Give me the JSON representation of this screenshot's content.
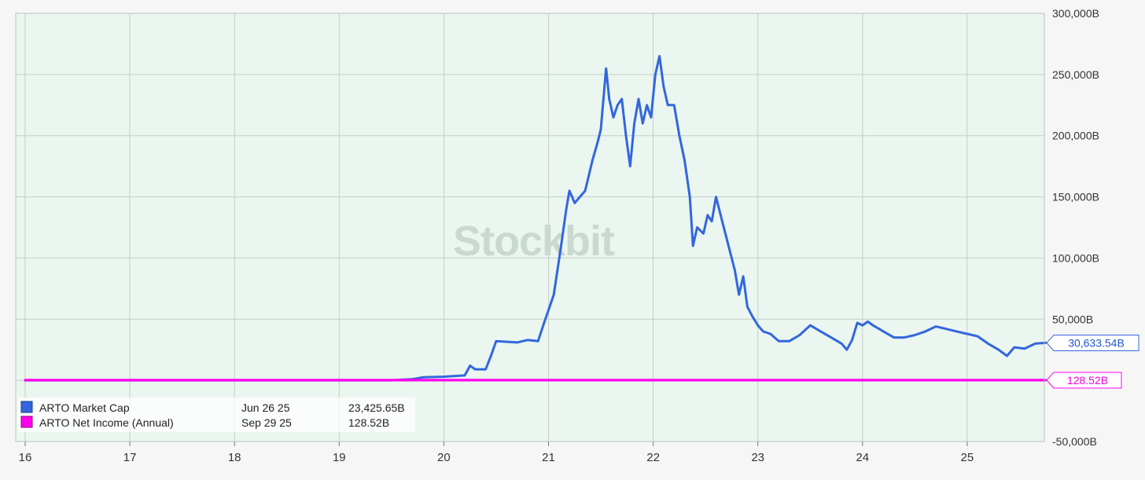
{
  "chart_data": {
    "type": "line",
    "watermark": "Stockbit",
    "x_ticks": [
      "16",
      "17",
      "18",
      "19",
      "20",
      "21",
      "22",
      "23",
      "24",
      "25"
    ],
    "x_range": [
      16.0,
      25.75
    ],
    "y_ticks": [
      "300,000B",
      "250,000B",
      "200,000B",
      "150,000B",
      "100,000B",
      "50,000B",
      "-50,000B"
    ],
    "ylim": [
      -50000,
      300000
    ],
    "grid": true,
    "legend_position": "bottom-left",
    "colors": {
      "market_cap": "#3366dd",
      "net_income": "#ff00ee",
      "plot_bg": "#eaf6ef"
    },
    "series": [
      {
        "name": "ARTO Market Cap",
        "date": "Jun 26 25",
        "value": "23,425.65B",
        "last_value_label": "30,633.54B",
        "color": "#3366dd",
        "points": [
          [
            16.0,
            0
          ],
          [
            18.0,
            0
          ],
          [
            19.5,
            0
          ],
          [
            19.7,
            1000
          ],
          [
            19.8,
            2500
          ],
          [
            20.0,
            3000
          ],
          [
            20.2,
            4000
          ],
          [
            20.25,
            12000
          ],
          [
            20.3,
            9000
          ],
          [
            20.4,
            9000
          ],
          [
            20.45,
            20000
          ],
          [
            20.5,
            32000
          ],
          [
            20.7,
            31000
          ],
          [
            20.8,
            33000
          ],
          [
            20.9,
            32000
          ],
          [
            20.95,
            45000
          ],
          [
            21.05,
            70000
          ],
          [
            21.12,
            110000
          ],
          [
            21.17,
            140000
          ],
          [
            21.2,
            155000
          ],
          [
            21.25,
            145000
          ],
          [
            21.3,
            150000
          ],
          [
            21.35,
            155000
          ],
          [
            21.42,
            180000
          ],
          [
            21.47,
            195000
          ],
          [
            21.5,
            205000
          ],
          [
            21.55,
            255000
          ],
          [
            21.58,
            230000
          ],
          [
            21.62,
            215000
          ],
          [
            21.66,
            225000
          ],
          [
            21.7,
            230000
          ],
          [
            21.74,
            200000
          ],
          [
            21.78,
            175000
          ],
          [
            21.82,
            210000
          ],
          [
            21.86,
            230000
          ],
          [
            21.9,
            210000
          ],
          [
            21.94,
            225000
          ],
          [
            21.98,
            215000
          ],
          [
            22.02,
            250000
          ],
          [
            22.06,
            265000
          ],
          [
            22.1,
            240000
          ],
          [
            22.14,
            225000
          ],
          [
            22.2,
            225000
          ],
          [
            22.25,
            200000
          ],
          [
            22.3,
            180000
          ],
          [
            22.35,
            150000
          ],
          [
            22.38,
            110000
          ],
          [
            22.42,
            125000
          ],
          [
            22.48,
            120000
          ],
          [
            22.52,
            135000
          ],
          [
            22.56,
            130000
          ],
          [
            22.6,
            150000
          ],
          [
            22.66,
            130000
          ],
          [
            22.72,
            110000
          ],
          [
            22.78,
            90000
          ],
          [
            22.82,
            70000
          ],
          [
            22.86,
            85000
          ],
          [
            22.9,
            60000
          ],
          [
            22.95,
            52000
          ],
          [
            23.0,
            45000
          ],
          [
            23.05,
            40000
          ],
          [
            23.12,
            38000
          ],
          [
            23.2,
            32000
          ],
          [
            23.3,
            32000
          ],
          [
            23.4,
            37000
          ],
          [
            23.5,
            45000
          ],
          [
            23.6,
            40000
          ],
          [
            23.7,
            35000
          ],
          [
            23.8,
            30000
          ],
          [
            23.85,
            25000
          ],
          [
            23.9,
            33000
          ],
          [
            23.95,
            47000
          ],
          [
            24.0,
            45000
          ],
          [
            24.05,
            48000
          ],
          [
            24.1,
            45000
          ],
          [
            24.2,
            40000
          ],
          [
            24.3,
            35000
          ],
          [
            24.4,
            35000
          ],
          [
            24.5,
            37000
          ],
          [
            24.6,
            40000
          ],
          [
            24.7,
            44000
          ],
          [
            24.8,
            42000
          ],
          [
            24.9,
            40000
          ],
          [
            25.0,
            38000
          ],
          [
            25.1,
            36000
          ],
          [
            25.2,
            30000
          ],
          [
            25.3,
            25000
          ],
          [
            25.38,
            20000
          ],
          [
            25.45,
            27000
          ],
          [
            25.55,
            26000
          ],
          [
            25.65,
            30000
          ],
          [
            25.75,
            30633.54
          ]
        ]
      },
      {
        "name": "ARTO Net Income (Annual)",
        "date": "Sep 29 25",
        "value": "128.52B",
        "last_value_label": "128.52B",
        "color": "#ff00ee",
        "points": [
          [
            16.0,
            128.52
          ],
          [
            25.75,
            128.52
          ]
        ]
      }
    ]
  }
}
